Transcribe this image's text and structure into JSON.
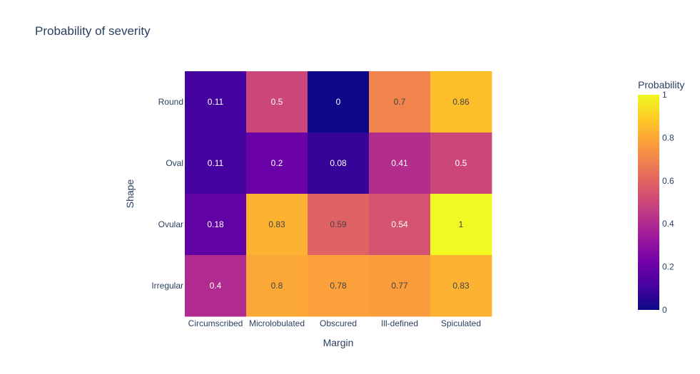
{
  "chart_data": {
    "type": "heatmap",
    "title": "Probability of severity",
    "xlabel": "Margin",
    "ylabel": "Shape",
    "x_categories": [
      "Circumscribed",
      "Microlobulated",
      "Obscured",
      "Ill-defined",
      "Spiculated"
    ],
    "y_categories": [
      "Round",
      "Oval",
      "Ovular",
      "Irregular"
    ],
    "values": [
      [
        0.11,
        0.5,
        0,
        0.7,
        0.86
      ],
      [
        0.11,
        0.2,
        0.08,
        0.41,
        0.5
      ],
      [
        0.18,
        0.83,
        0.59,
        0.54,
        1
      ],
      [
        0.4,
        0.8,
        0.78,
        0.77,
        0.83
      ]
    ],
    "colorbar": {
      "title": "Probability",
      "range": [
        0,
        1
      ],
      "ticks": [
        0,
        0.2,
        0.4,
        0.6,
        0.8,
        1
      ],
      "colorscale": [
        "#0d0887",
        "#46039f",
        "#7201a8",
        "#9c179e",
        "#bd3786",
        "#d8576b",
        "#ed7953",
        "#fb9f3a",
        "#fdca26",
        "#f0f921"
      ]
    }
  }
}
